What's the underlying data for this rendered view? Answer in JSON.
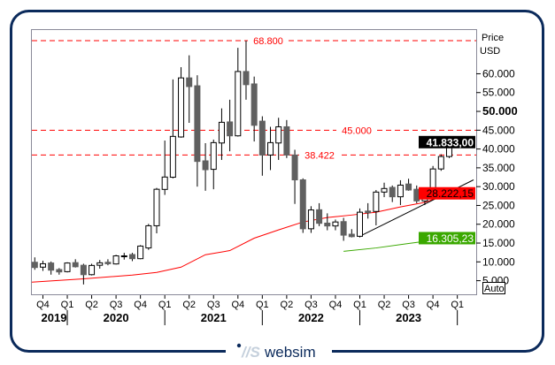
{
  "logo": {
    "text": "websim",
    "mark": "//S"
  },
  "chart_data": {
    "type": "candlestick",
    "title": "",
    "axis": {
      "title": "Price",
      "unit": "USD",
      "ylim": [
        0,
        72000
      ],
      "scale": "linear",
      "ticks": [
        5000,
        10000,
        15000,
        20000,
        25000,
        30000,
        35000,
        40000,
        45000,
        50000,
        55000,
        60000
      ],
      "tick_labels": [
        "5.000",
        "10.000",
        "15.000",
        "20.000",
        "25.000",
        "30.000",
        "35.000",
        "40.000",
        "45.000",
        "50.000",
        "55.000",
        "60.000"
      ],
      "bold_tick": "50.000",
      "auto_button": "Auto"
    },
    "x_axis": {
      "quarters": [
        {
          "label": "Q4",
          "date": "2019-10"
        },
        {
          "label": "Q1",
          "date": "2020-01"
        },
        {
          "label": "Q2",
          "date": "2020-04"
        },
        {
          "label": "Q3",
          "date": "2020-07"
        },
        {
          "label": "Q4",
          "date": "2020-10"
        },
        {
          "label": "Q1",
          "date": "2021-01"
        },
        {
          "label": "Q2",
          "date": "2021-04"
        },
        {
          "label": "Q3",
          "date": "2021-07"
        },
        {
          "label": "Q4",
          "date": "2021-10"
        },
        {
          "label": "Q1",
          "date": "2022-01"
        },
        {
          "label": "Q2",
          "date": "2022-04"
        },
        {
          "label": "Q3",
          "date": "2022-07"
        },
        {
          "label": "Q4",
          "date": "2022-10"
        },
        {
          "label": "Q1",
          "date": "2023-01"
        },
        {
          "label": "Q2",
          "date": "2023-04"
        },
        {
          "label": "Q3",
          "date": "2023-07"
        },
        {
          "label": "Q4",
          "date": "2023-10"
        },
        {
          "label": "Q1",
          "date": "2024-01"
        }
      ],
      "years": [
        "2019",
        "2020",
        "2021",
        "2022",
        "2023"
      ]
    },
    "candles_columns": [
      "date",
      "open",
      "high",
      "low",
      "close"
    ],
    "candles": [
      [
        "2019-09",
        9900,
        11200,
        7900,
        8500
      ],
      [
        "2019-10",
        8600,
        10300,
        7600,
        9500
      ],
      [
        "2019-11",
        9700,
        10100,
        6600,
        7800
      ],
      [
        "2019-12",
        7960,
        8350,
        6600,
        7330
      ],
      [
        "2020-01",
        7400,
        9900,
        7200,
        9700
      ],
      [
        "2020-02",
        9800,
        10700,
        8500,
        8700
      ],
      [
        "2020-03",
        9100,
        9500,
        4000,
        6600
      ],
      [
        "2020-04",
        6600,
        9500,
        6400,
        9050
      ],
      [
        "2020-05",
        9100,
        10500,
        8200,
        9750
      ],
      [
        "2020-06",
        9900,
        10700,
        9100,
        9500
      ],
      [
        "2020-07",
        9450,
        11870,
        9300,
        11600
      ],
      [
        "2020-08",
        11450,
        12400,
        10600,
        11600
      ],
      [
        "2020-09",
        11950,
        12400,
        10200,
        10850
      ],
      [
        "2020-10",
        10850,
        14450,
        10700,
        14200
      ],
      [
        "2020-11",
        13700,
        20100,
        13200,
        19600
      ],
      [
        "2020-12",
        19600,
        29650,
        17600,
        29300
      ],
      [
        "2021-01",
        29260,
        42250,
        27800,
        32550
      ],
      [
        "2021-02",
        32500,
        58500,
        32200,
        43350
      ],
      [
        "2021-03",
        43200,
        61750,
        43000,
        58900
      ],
      [
        "2021-04",
        58900,
        64900,
        46950,
        56600
      ],
      [
        "2021-05",
        56800,
        59600,
        30000,
        36700
      ],
      [
        "2021-06",
        36850,
        41550,
        28900,
        34500
      ],
      [
        "2021-07",
        34600,
        42500,
        29300,
        41700
      ],
      [
        "2021-08",
        41600,
        50800,
        37100,
        47100
      ],
      [
        "2021-09",
        47200,
        53100,
        39400,
        43500
      ],
      [
        "2021-10",
        43500,
        66900,
        43300,
        60600
      ],
      [
        "2021-11",
        60600,
        68800,
        53100,
        57100
      ],
      [
        "2021-12",
        57300,
        59250,
        42000,
        46300
      ],
      [
        "2022-01",
        47400,
        48700,
        32900,
        38400
      ],
      [
        "2022-02",
        38400,
        45900,
        34400,
        41700
      ],
      [
        "2022-03",
        41600,
        48300,
        37100,
        45900
      ],
      [
        "2022-04",
        45900,
        47700,
        37600,
        38400
      ],
      [
        "2022-05",
        38400,
        39800,
        25400,
        31800
      ],
      [
        "2022-06",
        31800,
        32200,
        17700,
        18800
      ],
      [
        "2022-07",
        18800,
        24800,
        17700,
        23800
      ],
      [
        "2022-08",
        23850,
        25600,
        19500,
        20250
      ],
      [
        "2022-09",
        20300,
        22900,
        18400,
        19550
      ],
      [
        "2022-10",
        19550,
        21250,
        18400,
        20600
      ],
      [
        "2022-11",
        20700,
        21700,
        15600,
        17100
      ],
      [
        "2022-12",
        17350,
        18700,
        16500,
        16700
      ],
      [
        "2023-01",
        16800,
        24200,
        16500,
        23200
      ],
      [
        "2023-02",
        23500,
        25600,
        21500,
        23070
      ],
      [
        "2023-03",
        23400,
        29100,
        19700,
        28550
      ],
      [
        "2023-04",
        28550,
        31050,
        27200,
        29500
      ],
      [
        "2023-05",
        29800,
        30300,
        25900,
        27300
      ],
      [
        "2023-06",
        27300,
        31700,
        25100,
        30400
      ],
      [
        "2023-07",
        30700,
        32100,
        28900,
        29100
      ],
      [
        "2023-08",
        29300,
        30300,
        25600,
        26200
      ],
      [
        "2023-09",
        26200,
        27300,
        25100,
        27100
      ],
      [
        "2023-10",
        27100,
        35500,
        26700,
        34700
      ],
      [
        "2023-11",
        34700,
        38600,
        34200,
        38000
      ],
      [
        "2023-12",
        38000,
        42200,
        37600,
        41833
      ]
    ],
    "lines": [
      {
        "kind": "moving-average",
        "color": "#ff0000",
        "last_value_label": "28.222,15",
        "points": [
          [
            "2019-08",
            4600
          ],
          [
            "2020-03",
            5500
          ],
          [
            "2020-09",
            6500
          ],
          [
            "2020-12",
            7200
          ],
          [
            "2021-03",
            8600
          ],
          [
            "2021-06",
            11900
          ],
          [
            "2021-09",
            13000
          ],
          [
            "2021-12",
            16300
          ],
          [
            "2022-03",
            18500
          ],
          [
            "2022-06",
            20600
          ],
          [
            "2022-09",
            21800
          ],
          [
            "2022-12",
            22450
          ],
          [
            "2023-03",
            23200
          ],
          [
            "2023-06",
            24600
          ],
          [
            "2023-09",
            25800
          ],
          [
            "2023-12",
            28222
          ]
        ]
      },
      {
        "kind": "moving-average",
        "color": "#3aa800",
        "last_value_label": "16.305,23",
        "points": [
          [
            "2022-11",
            12800
          ],
          [
            "2023-03",
            13700
          ],
          [
            "2023-07",
            14900
          ],
          [
            "2023-12",
            16305
          ]
        ]
      },
      {
        "kind": "trendline",
        "color": "#000000",
        "points": [
          [
            "2023-01",
            16800
          ],
          [
            "2024-03",
            31800
          ]
        ]
      }
    ],
    "levels": [
      {
        "value": 68800,
        "label": "68.800",
        "color": "#ff0000"
      },
      {
        "value": 45000,
        "label": "45.000",
        "color": "#ff0000"
      },
      {
        "value": 38422,
        "label": "38.422",
        "color": "#ff0000"
      }
    ],
    "last_price": {
      "label": "41.833,00",
      "bg": "#000000",
      "fg": "#ffffff"
    },
    "markers": [
      {
        "label": "28.222,15",
        "value": 28222,
        "bg": "#ff0000",
        "fg": "#000000"
      },
      {
        "label": "16.305,23",
        "value": 16305,
        "bg": "#3aa800",
        "fg": "#ffffff"
      }
    ],
    "colors": {
      "up": "#ffffff",
      "down": "#606060",
      "frame": "#0b2a5b"
    }
  }
}
